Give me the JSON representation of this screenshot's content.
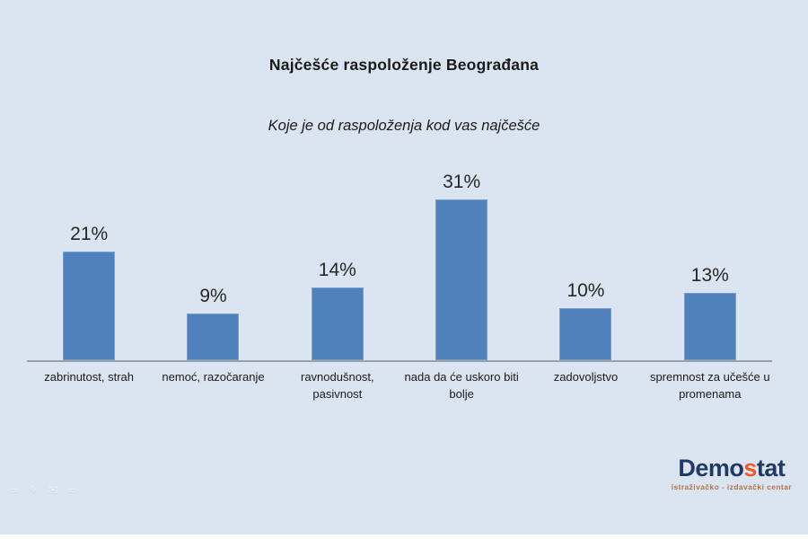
{
  "chart_data": {
    "type": "bar",
    "title": "Najčešće raspoloženje Beograđana",
    "subtitle": "Koje je od raspoloženja kod vas najčešće",
    "categories": [
      "zabrinutost, strah",
      "nemoć, razočaranje",
      "ravnodušnost, pasivnost",
      "nada da će uskoro biti bolje",
      "zadovoljstvo",
      "spremnost za učešće u promenama"
    ],
    "values": [
      21,
      9,
      14,
      31,
      10,
      13
    ],
    "value_labels": [
      "21%",
      "9%",
      "14%",
      "31%",
      "10%",
      "13%"
    ],
    "xlabel": "",
    "ylabel": "",
    "ylim": [
      0,
      31
    ],
    "grid": false,
    "legend": false,
    "bar_color": "#4f81bd",
    "bar_border_color": "#7ba0cd",
    "axis_line_color": "#9aa0a6",
    "background_color": "#dbe5f2"
  },
  "branding": {
    "logo_part1": "Demo",
    "logo_accent": "s",
    "logo_part2": "tat",
    "tagline": "istraživačko - izdavački centar",
    "logo_color": "#223a63",
    "accent_color": "#f05a28",
    "tagline_color": "#b5714b"
  },
  "watermark": {
    "icons": [
      {
        "name": "back-arrow-icon",
        "glyph": "⇦"
      },
      {
        "name": "pencil-icon",
        "glyph": "✎"
      },
      {
        "name": "envelope-icon",
        "glyph": "✉"
      },
      {
        "name": "forward-arrow-icon",
        "glyph": "⇨"
      }
    ]
  }
}
